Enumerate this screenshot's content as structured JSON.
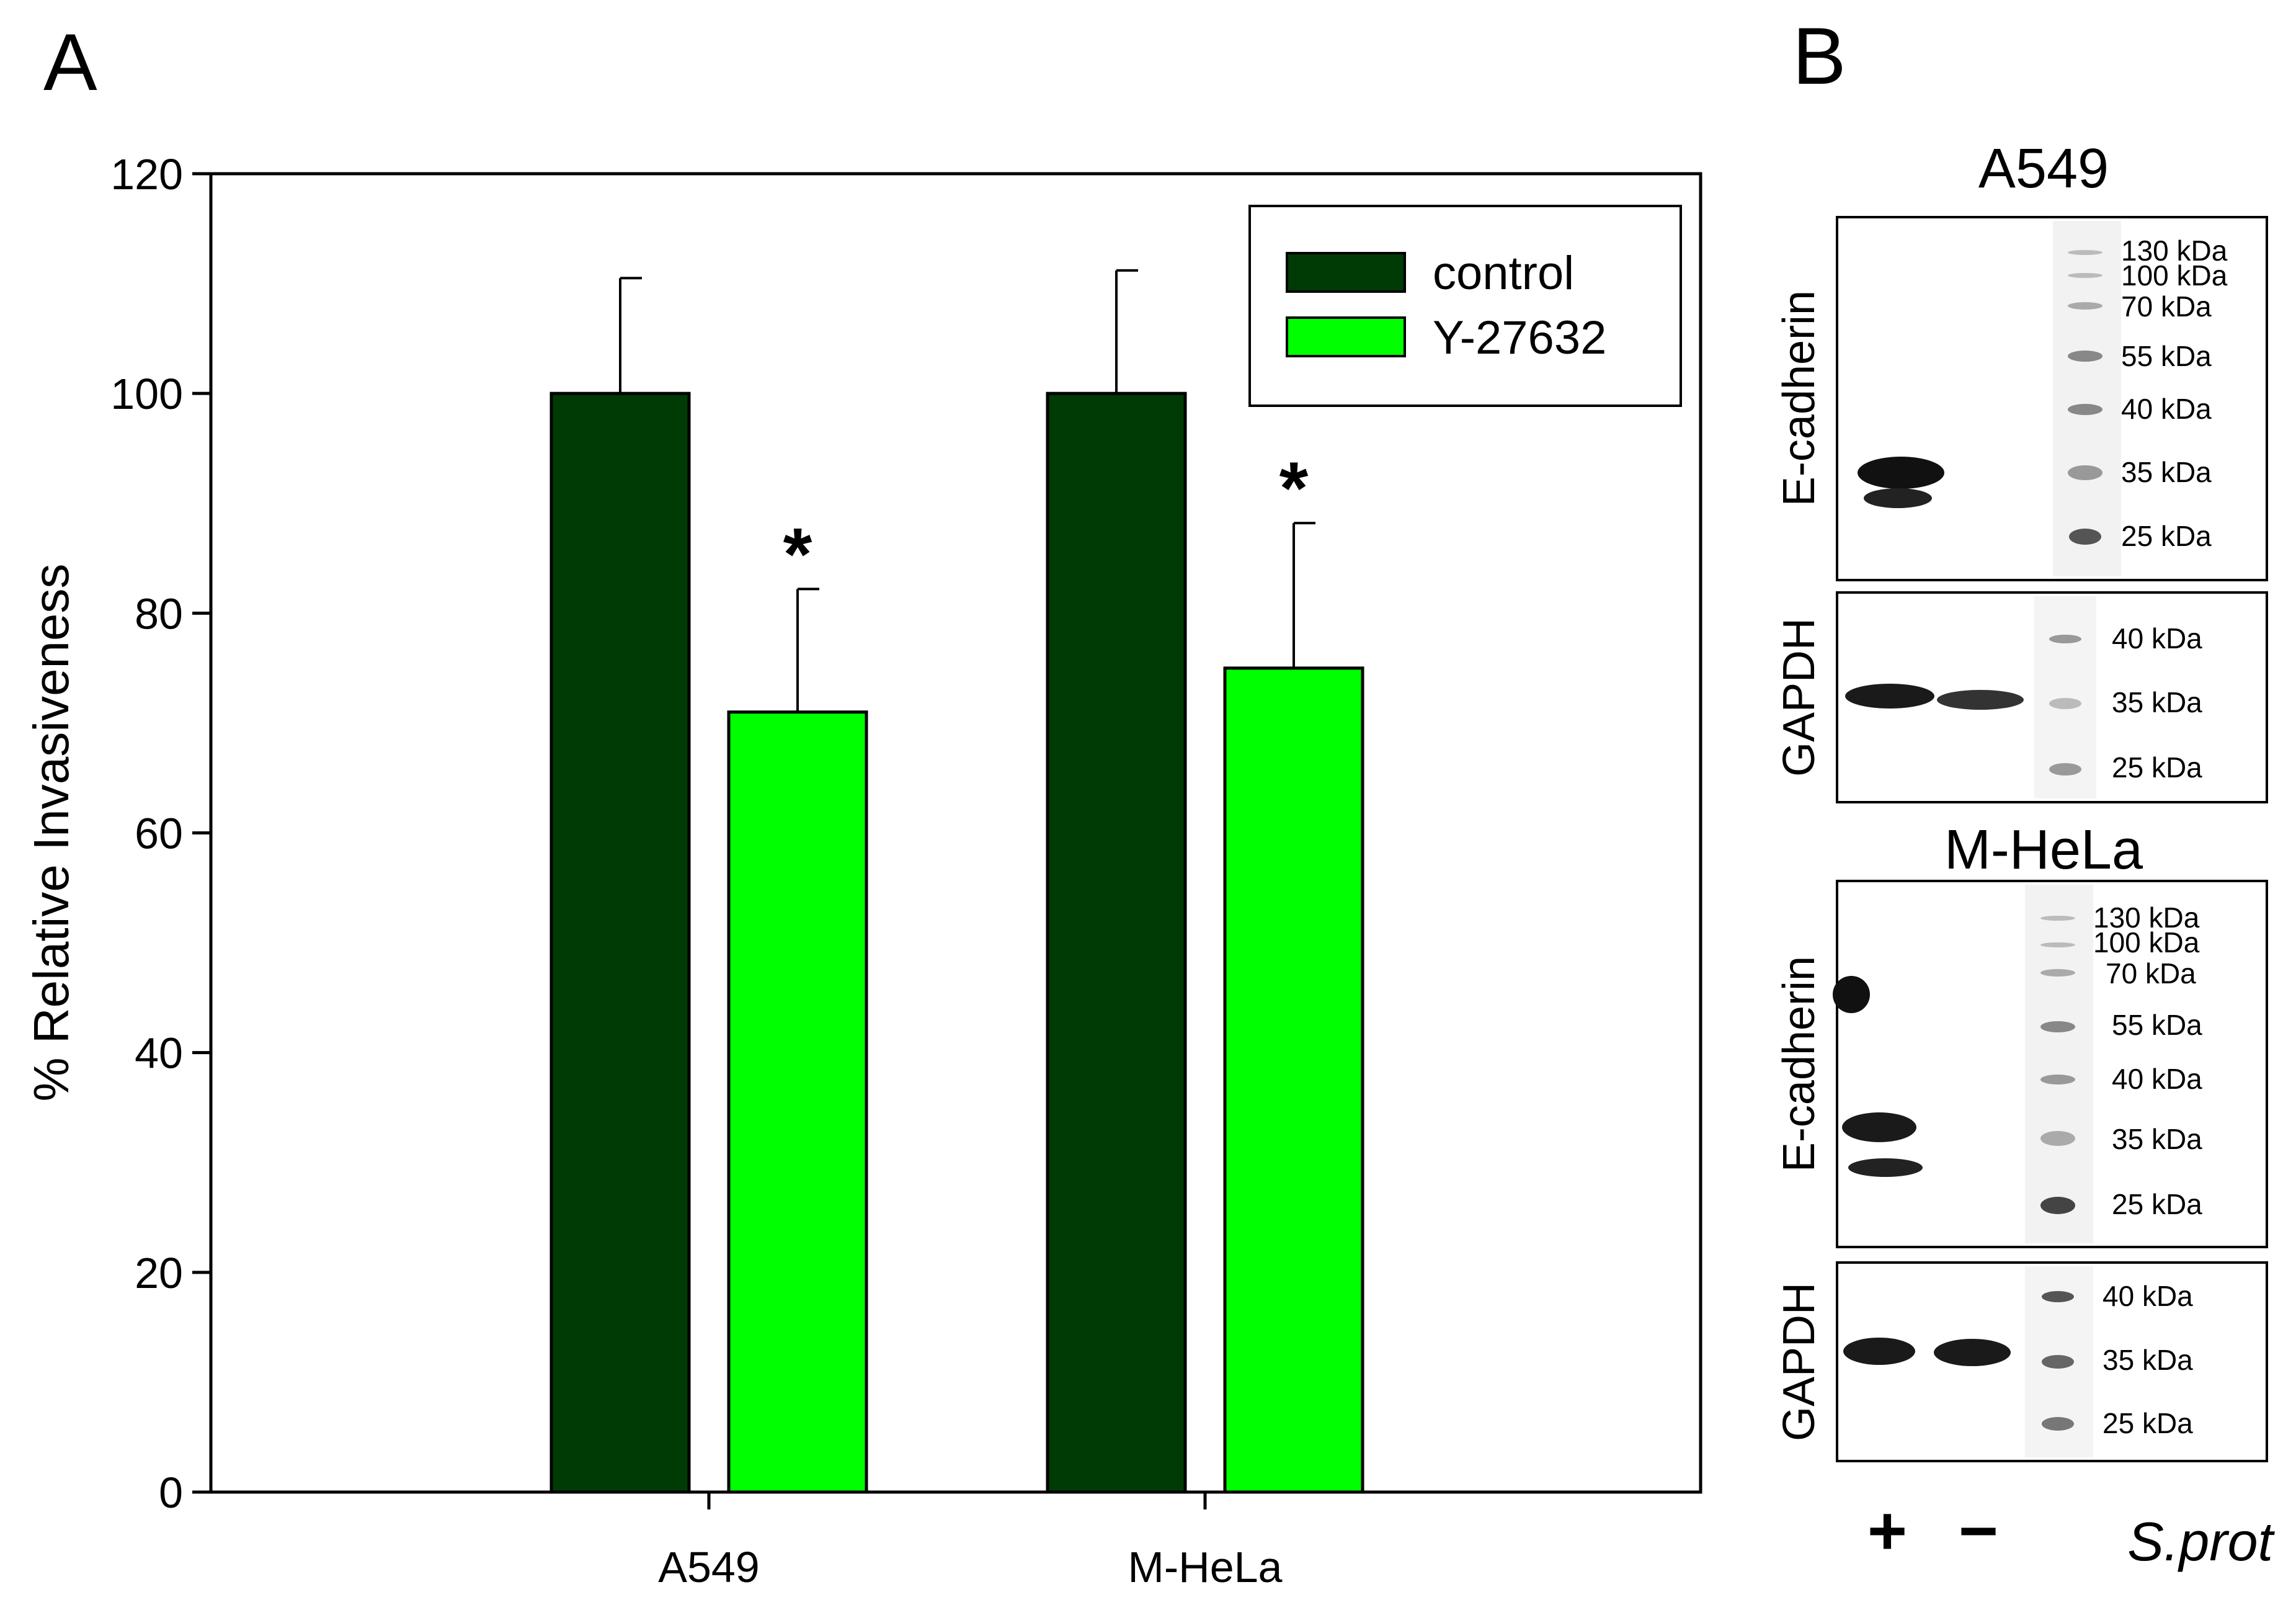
{
  "panel_a_label": "A",
  "panel_b_label": "B",
  "chart_data": {
    "type": "bar",
    "title": "",
    "xlabel": "",
    "ylabel": "% Relative Invasiveness",
    "ylim": [
      0,
      120
    ],
    "yticks": [
      0,
      20,
      40,
      60,
      80,
      100,
      120
    ],
    "categories": [
      "A549",
      "M-HeLa"
    ],
    "series": [
      {
        "name": "control",
        "color": "#003a05",
        "values": [
          100,
          100
        ],
        "errors": [
          10.5,
          11.2
        ]
      },
      {
        "name": "Y-27632",
        "color": "#00ff00",
        "values": [
          71,
          75
        ],
        "errors": [
          11.2,
          13.2
        ]
      }
    ],
    "annotations": [
      {
        "series": 1,
        "category": 0,
        "text": "*"
      },
      {
        "series": 1,
        "category": 1,
        "text": "*"
      }
    ],
    "legend_position": "top-right"
  },
  "blots": {
    "groups": [
      {
        "title": "A549",
        "rows": [
          {
            "label": "E-cadherin",
            "markers": [
              "130 kDa",
              "100 kDa",
              "70 kDa",
              "55 kDa",
              "40 kDa",
              "35 kDa",
              "25 kDa"
            ]
          },
          {
            "label": "GAPDH",
            "markers": [
              "40 kDa",
              "35 kDa",
              "25 kDa"
            ]
          }
        ]
      },
      {
        "title": "M-HeLa",
        "rows": [
          {
            "label": "E-cadherin",
            "markers": [
              "130 kDa",
              "100 kDa",
              "70 kDa",
              "55 kDa",
              "40 kDa",
              "35 kDa",
              "25 kDa"
            ]
          },
          {
            "label": "GAPDH",
            "markers": [
              "40 kDa",
              "35 kDa",
              "25 kDa"
            ]
          }
        ]
      }
    ],
    "lane_signs": [
      "+",
      "−"
    ],
    "treatment_label": "S.prot"
  }
}
